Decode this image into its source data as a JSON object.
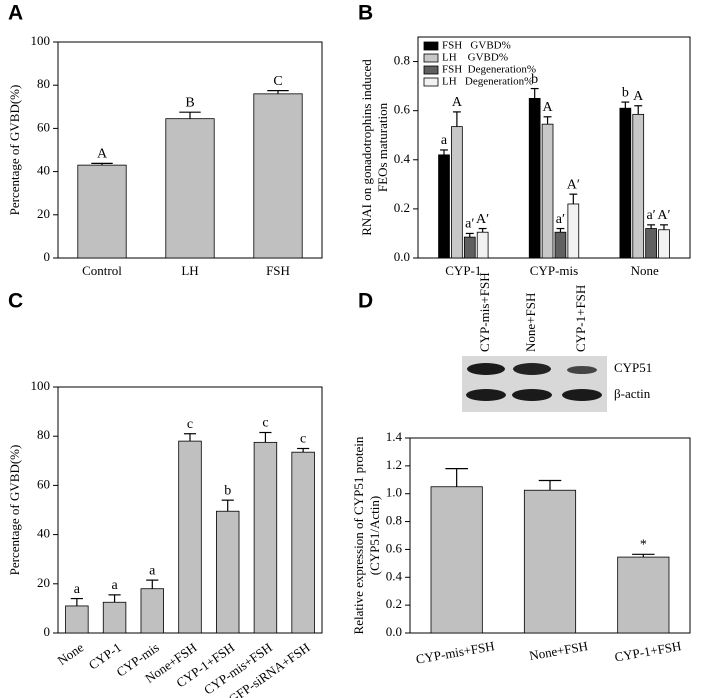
{
  "chart_data": [
    {
      "type": "bar",
      "panel": "A",
      "ylabel": [
        "Percentage of GVBD(%)"
      ],
      "categories": [
        "Control",
        "LH",
        "FSH"
      ],
      "values": [
        43,
        64.5,
        76
      ],
      "errors": [
        0.8,
        3,
        1.5
      ],
      "annotations": [
        "A",
        "B",
        "C"
      ],
      "color": "#c0c0c0",
      "ylim": [
        0,
        100
      ],
      "yticks": [
        0,
        20,
        40,
        60,
        80,
        100
      ]
    },
    {
      "type": "bar",
      "panel": "B",
      "ylabel": [
        "RNAI on gonadotrophins induced",
        "FEOs maturation"
      ],
      "categories": [
        "CYP-1",
        "CYP-mis",
        "None"
      ],
      "legend": "top-left",
      "series": [
        {
          "name": "FSH   GVBD%",
          "color": "#000000",
          "values": [
            0.42,
            0.65,
            0.61
          ],
          "errors": [
            0.02,
            0.04,
            0.025
          ],
          "annotations": [
            "a",
            "b",
            "b"
          ]
        },
        {
          "name": "LH    GVBD%",
          "color": "#c8c8c8",
          "values": [
            0.535,
            0.545,
            0.585
          ],
          "errors": [
            0.06,
            0.03,
            0.035
          ],
          "annotations": [
            "A",
            "A",
            "A"
          ]
        },
        {
          "name": "FSH  Degeneration%",
          "color": "#606060",
          "values": [
            0.085,
            0.105,
            0.12
          ],
          "errors": [
            0.015,
            0.015,
            0.015
          ],
          "annotations": [
            "a′",
            "a′",
            "a′"
          ]
        },
        {
          "name": "LH   Degeneration%",
          "color": "#f2f2f2",
          "values": [
            0.105,
            0.22,
            0.115
          ],
          "errors": [
            0.015,
            0.04,
            0.02
          ],
          "annotations": [
            "A′",
            "A′",
            "A′"
          ]
        }
      ],
      "ylim": [
        0,
        0.9
      ],
      "yticks": [
        {
          "value": 0,
          "label": "0.0"
        },
        0.2,
        0.4,
        0.6,
        0.8
      ]
    },
    {
      "type": "bar",
      "panel": "C",
      "ylabel": [
        "Percentage of GVBD(%)"
      ],
      "categories": [
        "None",
        "CYP-1",
        "CYP-mis",
        "None+FSH",
        "CYP-1+FSH",
        "CYP-mis+FSH",
        "GFP-siRNA+FSH"
      ],
      "values": [
        11,
        12.5,
        18,
        78,
        49.5,
        77.5,
        73.5
      ],
      "errors": [
        3,
        3,
        3.5,
        3,
        4.5,
        4,
        1.5
      ],
      "annotations": [
        "a",
        "a",
        "a",
        "c",
        "b",
        "c",
        "c"
      ],
      "color": "#c0c0c0",
      "ylim": [
        0,
        100
      ],
      "yticks": [
        0,
        20,
        40,
        60,
        80,
        100
      ]
    },
    {
      "type": "bar",
      "panel": "D",
      "ylabel": [
        "Relative expression of CYP51 protein",
        "(CYP51/Actin)"
      ],
      "categories": [
        "CYP-mis+FSH",
        "None+FSH",
        "CYP-1+FSH"
      ],
      "values": [
        1.05,
        1.025,
        0.545
      ],
      "errors": [
        0.13,
        0.07,
        0.02
      ],
      "annotations": [
        null,
        null,
        "*"
      ],
      "color": "#c0c0c0",
      "blot_lanes": [
        "CYP-mis+FSH",
        "None+FSH",
        "CYP-1+FSH"
      ],
      "blot_rows": [
        "CYP51",
        "β-actin"
      ],
      "ylim": [
        0,
        1.4
      ],
      "yticks": [
        {
          "value": 0,
          "label": "0.0"
        },
        0.2,
        0.4,
        0.6,
        0.8,
        {
          "value": 1,
          "label": "1.0"
        },
        1.2,
        1.4
      ]
    }
  ]
}
